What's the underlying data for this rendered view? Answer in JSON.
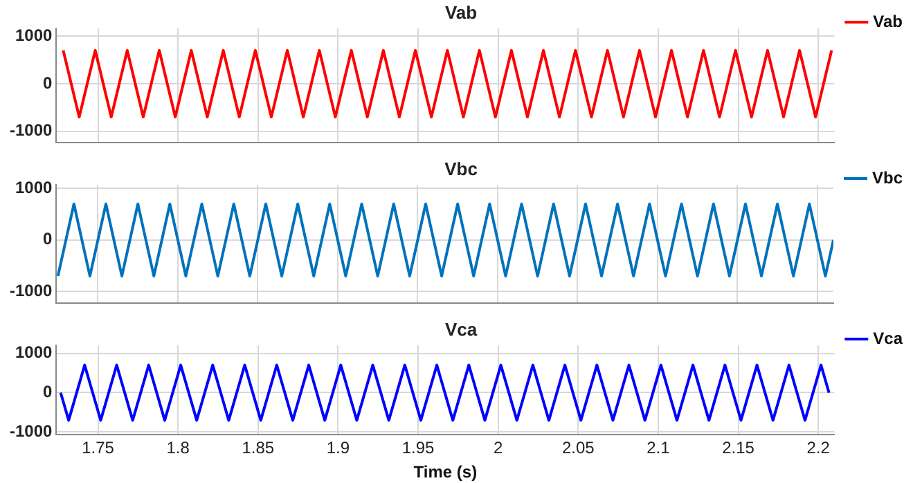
{
  "chart_data": [
    {
      "type": "line",
      "title": "Vab",
      "marker": "none",
      "line_style": "solid",
      "grid": true,
      "legend": "top right",
      "tick_labels": "y",
      "series": [
        {
          "name": "Vab",
          "color": "#ff0000",
          "x": [
            1.7283,
            1.7333,
            1.7383,
            1.7433,
            1.7483,
            1.7533,
            1.7583,
            1.7633,
            1.7683,
            1.7733,
            1.7783,
            1.7833,
            1.7883,
            1.7933,
            1.7983,
            1.8033,
            1.8083,
            1.8133,
            1.8183,
            1.8233,
            1.8283,
            1.8333,
            1.8383,
            1.8433,
            1.8483,
            1.8533,
            1.8583,
            1.8633,
            1.8683,
            1.8733,
            1.8783,
            1.8833,
            1.8883,
            1.8933,
            1.8983,
            1.9033,
            1.9083,
            1.9133,
            1.9183,
            1.9233,
            1.9283,
            1.9333,
            1.9383,
            1.9433,
            1.9483,
            1.9533,
            1.9583,
            1.9633,
            1.9683,
            1.9733,
            1.9783,
            1.9833,
            1.9883,
            1.9933,
            1.9983,
            2.0033,
            2.0083,
            2.0133,
            2.0183,
            2.0233,
            2.0283,
            2.0333,
            2.0383,
            2.0433,
            2.0483,
            2.0533,
            2.0583,
            2.0633,
            2.0683,
            2.0733,
            2.0783,
            2.0833,
            2.0883,
            2.0933,
            2.0983,
            2.1033,
            2.1083,
            2.1133,
            2.1183,
            2.1233,
            2.1283,
            2.1333,
            2.1383,
            2.1433,
            2.1483,
            2.1533,
            2.1583,
            2.1633,
            2.1683,
            2.1733,
            2.1783,
            2.1833,
            2.1883,
            2.1933,
            2.1983,
            2.2033,
            2.2083
          ],
          "values": [
            700,
            0,
            -700,
            0,
            700,
            0,
            -700,
            0,
            700,
            0,
            -700,
            0,
            700,
            0,
            -700,
            0,
            700,
            0,
            -700,
            0,
            700,
            0,
            -700,
            0,
            700,
            0,
            -700,
            0,
            700,
            0,
            -700,
            0,
            700,
            0,
            -700,
            0,
            700,
            0,
            -700,
            0,
            700,
            0,
            -700,
            0,
            700,
            0,
            -700,
            0,
            700,
            0,
            -700,
            0,
            700,
            0,
            -700,
            0,
            700,
            0,
            -700,
            0,
            700,
            0,
            -700,
            0,
            700,
            0,
            -700,
            0,
            700,
            0,
            -700,
            0,
            700,
            0,
            -700,
            0,
            700,
            0,
            -700,
            0,
            700,
            0,
            -700,
            0,
            700,
            0,
            -700,
            0,
            700,
            0,
            -700,
            0,
            700,
            0,
            -700,
            0,
            700
          ]
        }
      ],
      "xlim": [
        1.724,
        2.21
      ],
      "xticks": [
        1.75,
        1.8,
        1.85,
        1.9,
        1.95,
        2,
        2.05,
        2.1,
        2.15,
        2.2
      ],
      "ylim": [
        -1230,
        1160
      ],
      "yticks": [
        -1000,
        0,
        1000
      ]
    },
    {
      "type": "line",
      "title": "Vbc",
      "marker": "none",
      "line_style": "solid",
      "grid": true,
      "legend": "top right",
      "tick_labels": "y",
      "series": [
        {
          "name": "Vbc",
          "color": "#0072bd",
          "x": [
            1.725,
            1.73,
            1.735,
            1.74,
            1.745,
            1.75,
            1.755,
            1.76,
            1.765,
            1.77,
            1.775,
            1.78,
            1.785,
            1.79,
            1.795,
            1.8,
            1.805,
            1.81,
            1.815,
            1.82,
            1.825,
            1.83,
            1.835,
            1.84,
            1.845,
            1.85,
            1.855,
            1.86,
            1.865,
            1.87,
            1.875,
            1.88,
            1.885,
            1.89,
            1.895,
            1.9,
            1.905,
            1.91,
            1.915,
            1.92,
            1.925,
            1.93,
            1.935,
            1.94,
            1.945,
            1.95,
            1.955,
            1.96,
            1.965,
            1.97,
            1.975,
            1.98,
            1.985,
            1.99,
            1.995,
            2,
            2.005,
            2.01,
            2.015,
            2.02,
            2.025,
            2.03,
            2.035,
            2.04,
            2.045,
            2.05,
            2.055,
            2.06,
            2.065,
            2.07,
            2.075,
            2.08,
            2.085,
            2.09,
            2.095,
            2.1,
            2.105,
            2.11,
            2.115,
            2.12,
            2.125,
            2.13,
            2.135,
            2.14,
            2.145,
            2.15,
            2.155,
            2.16,
            2.165,
            2.17,
            2.175,
            2.18,
            2.185,
            2.19,
            2.195,
            2.2,
            2.205,
            2.21
          ],
          "values": [
            -700,
            0,
            700,
            0,
            -700,
            0,
            700,
            0,
            -700,
            0,
            700,
            0,
            -700,
            0,
            700,
            0,
            -700,
            0,
            700,
            0,
            -700,
            0,
            700,
            0,
            -700,
            0,
            700,
            0,
            -700,
            0,
            700,
            0,
            -700,
            0,
            700,
            0,
            -700,
            0,
            700,
            0,
            -700,
            0,
            700,
            0,
            -700,
            0,
            700,
            0,
            -700,
            0,
            700,
            0,
            -700,
            0,
            700,
            0,
            -700,
            0,
            700,
            0,
            -700,
            0,
            700,
            0,
            -700,
            0,
            700,
            0,
            -700,
            0,
            700,
            0,
            -700,
            0,
            700,
            0,
            -700,
            0,
            700,
            0,
            -700,
            0,
            700,
            0,
            -700,
            0,
            700,
            0,
            -700,
            0,
            700,
            0,
            -700,
            0,
            700,
            0,
            -700,
            0
          ]
        }
      ],
      "xlim": [
        1.724,
        2.21
      ],
      "xticks": [
        1.75,
        1.8,
        1.85,
        1.9,
        1.95,
        2,
        2.05,
        2.1,
        2.15,
        2.2
      ],
      "ylim": [
        -1220,
        1070
      ],
      "yticks": [
        -1000,
        0,
        1000
      ]
    },
    {
      "type": "line",
      "title": "Vca",
      "xlabel": "Time (s)",
      "marker": "none",
      "line_style": "solid",
      "grid": true,
      "legend": "top right",
      "series": [
        {
          "name": "Vca",
          "color": "#0000ff",
          "x": [
            1.7267,
            1.7317,
            1.7367,
            1.7417,
            1.7467,
            1.7517,
            1.7567,
            1.7617,
            1.7667,
            1.7717,
            1.7767,
            1.7817,
            1.7867,
            1.7917,
            1.7967,
            1.8017,
            1.8067,
            1.8117,
            1.8167,
            1.8217,
            1.8267,
            1.8317,
            1.8367,
            1.8417,
            1.8467,
            1.8517,
            1.8567,
            1.8617,
            1.8667,
            1.8717,
            1.8767,
            1.8817,
            1.8867,
            1.8917,
            1.8967,
            1.9017,
            1.9067,
            1.9117,
            1.9167,
            1.9217,
            1.9267,
            1.9317,
            1.9367,
            1.9417,
            1.9467,
            1.9517,
            1.9567,
            1.9617,
            1.9667,
            1.9717,
            1.9767,
            1.9817,
            1.9867,
            1.9917,
            1.9967,
            2.0017,
            2.0067,
            2.0117,
            2.0167,
            2.0217,
            2.0267,
            2.0317,
            2.0367,
            2.0417,
            2.0467,
            2.0517,
            2.0567,
            2.0617,
            2.0667,
            2.0717,
            2.0767,
            2.0817,
            2.0867,
            2.0917,
            2.0967,
            2.1017,
            2.1067,
            2.1117,
            2.1167,
            2.1217,
            2.1267,
            2.1317,
            2.1367,
            2.1417,
            2.1467,
            2.1517,
            2.1567,
            2.1617,
            2.1667,
            2.1717,
            2.1767,
            2.1817,
            2.1867,
            2.1917,
            2.1967,
            2.2017,
            2.2067
          ],
          "values": [
            0,
            -700,
            0,
            700,
            0,
            -700,
            0,
            700,
            0,
            -700,
            0,
            700,
            0,
            -700,
            0,
            700,
            0,
            -700,
            0,
            700,
            0,
            -700,
            0,
            700,
            0,
            -700,
            0,
            700,
            0,
            -700,
            0,
            700,
            0,
            -700,
            0,
            700,
            0,
            -700,
            0,
            700,
            0,
            -700,
            0,
            700,
            0,
            -700,
            0,
            700,
            0,
            -700,
            0,
            700,
            0,
            -700,
            0,
            700,
            0,
            -700,
            0,
            700,
            0,
            -700,
            0,
            700,
            0,
            -700,
            0,
            700,
            0,
            -700,
            0,
            700,
            0,
            -700,
            0,
            700,
            0,
            -700,
            0,
            700,
            0,
            -700,
            0,
            700,
            0,
            -700,
            0,
            700,
            0,
            -700,
            0,
            700,
            0,
            -700,
            0,
            700,
            0
          ]
        }
      ],
      "xlim": [
        1.724,
        2.21
      ],
      "xticks": [
        1.75,
        1.8,
        1.85,
        1.9,
        1.95,
        2,
        2.05,
        2.1,
        2.15,
        2.2
      ],
      "ylim": [
        -1070,
        1200
      ],
      "yticks": [
        -1000,
        0,
        1000
      ]
    }
  ]
}
